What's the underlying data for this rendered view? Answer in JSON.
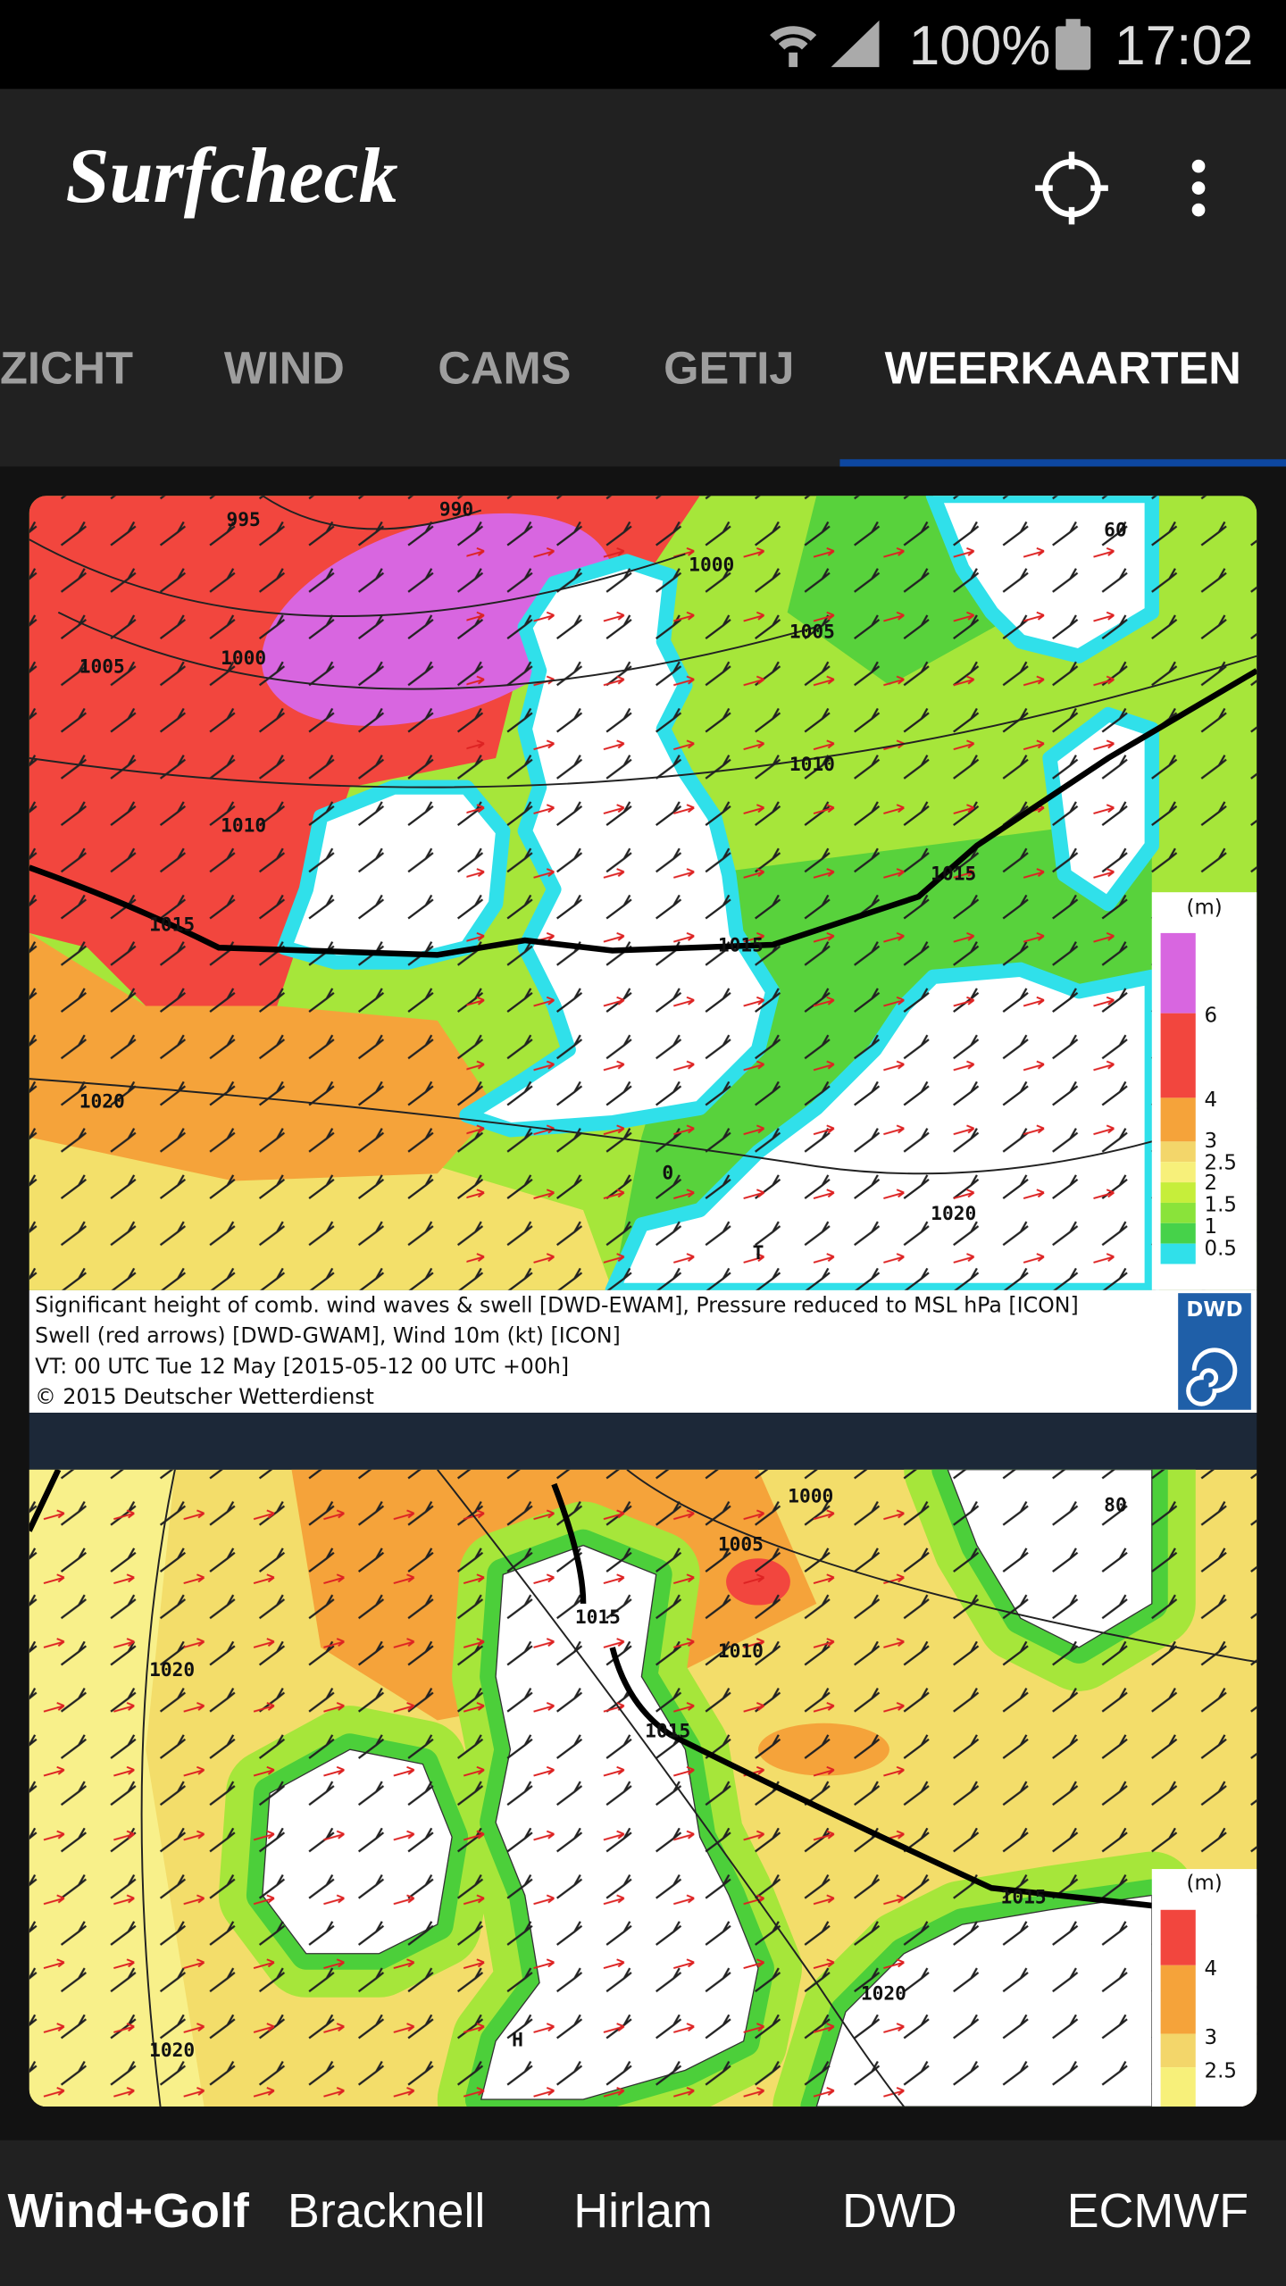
{
  "status_bar": {
    "battery": "100%",
    "time": "17:02"
  },
  "app_bar": {
    "title": "Surfcheck"
  },
  "tabs": {
    "items": [
      "ZICHT",
      "WIND",
      "CAMS",
      "GETIJ",
      "WEERKAARTEN"
    ],
    "selected": 4
  },
  "maps": [
    {
      "isobar_labels": [
        "995",
        "990",
        "1005",
        "1000",
        "1000",
        "1005",
        "1010",
        "1010",
        "1015",
        "1015",
        "1015",
        "1020",
        "1020",
        "60",
        "0",
        "T"
      ],
      "legend": {
        "unit": "(m)",
        "labels": [
          "6",
          "4",
          "3",
          "2.5",
          "2",
          "1.5",
          "1",
          "0.5"
        ]
      },
      "caption": [
        "Significant height of comb. wind waves & swell [DWD-EWAM], Pressure reduced to MSL hPa [ICON]",
        "Swell (red arrows) [DWD-GWAM], Wind 10m (kt) [ICON]",
        "VT: 00 UTC Tue 12 May [2015-05-12 00 UTC +00h]",
        "© 2015 Deutscher Wetterdienst"
      ],
      "logo": "DWD"
    },
    {
      "isobar_labels": [
        "1000",
        "1005",
        "1015",
        "1010",
        "1020",
        "1015",
        "1015",
        "1020",
        "1020",
        "80",
        "H"
      ],
      "legend": {
        "unit": "(m)",
        "labels": [
          "4",
          "3",
          "2.5"
        ]
      }
    }
  ],
  "bottom_nav": {
    "items": [
      "Wind+Golf",
      "Bracknell",
      "Hirlam",
      "DWD",
      "ECMWF"
    ],
    "selected": 0
  }
}
